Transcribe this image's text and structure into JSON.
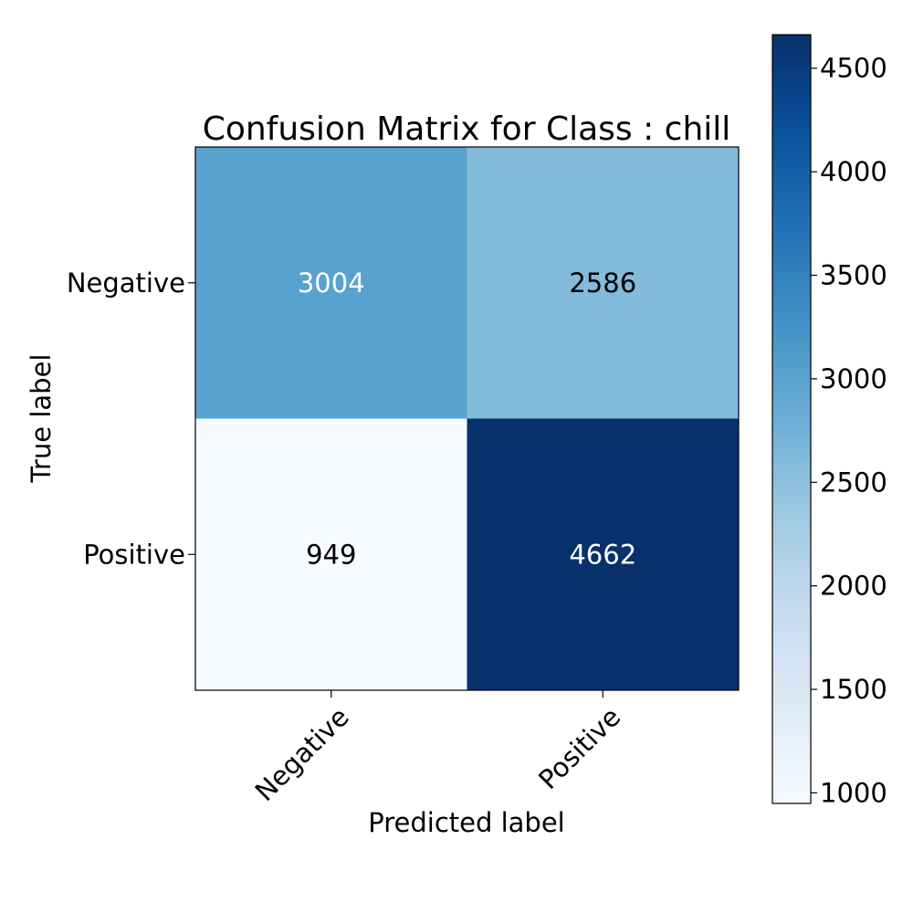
{
  "chart_data": {
    "type": "heatmap",
    "title": "Confusion Matrix for Class : chill",
    "xlabel": "Predicted label",
    "ylabel": "True label",
    "x_categories": [
      "Negative",
      "Positive"
    ],
    "y_categories": [
      "Negative",
      "Positive"
    ],
    "values": [
      [
        3004,
        2586
      ],
      [
        949,
        4662
      ]
    ],
    "colormap": "Blues",
    "color_range": [
      949,
      4662
    ],
    "colorbar_ticks": [
      1000,
      1500,
      2000,
      2500,
      3000,
      3500,
      4000,
      4500
    ],
    "colorbar_tick_labels": [
      "1000",
      "1500",
      "2000",
      "2500",
      "3000",
      "3500",
      "4000",
      "4500"
    ],
    "text_color_light": "#ffffff",
    "text_color_dark": "#000000"
  }
}
